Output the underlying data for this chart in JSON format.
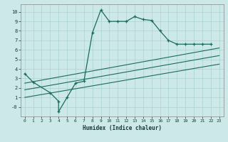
{
  "title": "",
  "xlabel": "Humidex (Indice chaleur)",
  "bg_color": "#cce8e8",
  "grid_color": "#aad0d0",
  "line_color": "#1a6b5a",
  "xlim": [
    -0.5,
    23.5
  ],
  "ylim": [
    -1.0,
    10.8
  ],
  "xticks": [
    0,
    1,
    2,
    3,
    4,
    5,
    6,
    7,
    8,
    9,
    10,
    11,
    12,
    13,
    14,
    15,
    16,
    17,
    18,
    19,
    20,
    21,
    22,
    23
  ],
  "yticks": [
    0,
    1,
    2,
    3,
    4,
    5,
    6,
    7,
    8,
    9,
    10
  ],
  "ytick_labels": [
    "-0",
    "1",
    "2",
    "3",
    "4",
    "5",
    "6",
    "7",
    "8",
    "9",
    "10"
  ],
  "curve_x": [
    0,
    1,
    3,
    4,
    4,
    5,
    6,
    7,
    8,
    9,
    10,
    11,
    12,
    13,
    14,
    15,
    16,
    17,
    18,
    19,
    20,
    21,
    22
  ],
  "curve_y": [
    3.5,
    2.6,
    1.5,
    0.6,
    -0.5,
    1.0,
    2.5,
    2.7,
    7.8,
    10.2,
    9.0,
    9.0,
    9.0,
    9.5,
    9.2,
    9.1,
    8.0,
    7.0,
    6.6,
    6.6,
    6.6,
    6.6,
    6.6
  ],
  "line1_x": [
    0,
    23
  ],
  "line1_y": [
    1.0,
    4.5
  ],
  "line2_x": [
    0,
    23
  ],
  "line2_y": [
    1.8,
    5.4
  ],
  "line3_x": [
    0,
    23
  ],
  "line3_y": [
    2.5,
    6.2
  ]
}
